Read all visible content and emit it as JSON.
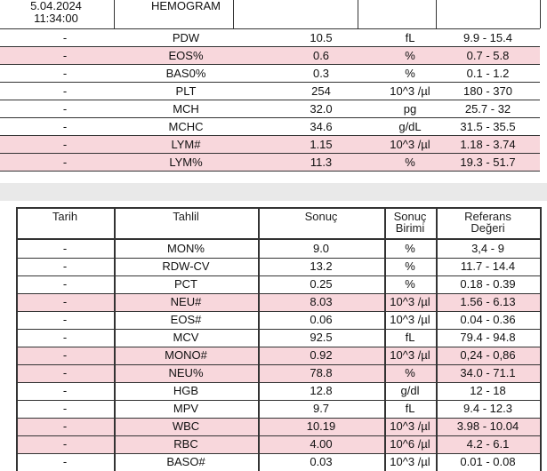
{
  "top_table": {
    "header": {
      "date": [
        "5.04.2024",
        "11:34:00"
      ],
      "panel": "HEMOGRAM"
    },
    "rows": [
      {
        "cells": [
          "-",
          "PDW",
          "10.5",
          "fL",
          "9.9 - 15.4"
        ],
        "highlight": false
      },
      {
        "cells": [
          "-",
          "EOS%",
          "0.6",
          "%",
          "0.7 - 5.8"
        ],
        "highlight": true
      },
      {
        "cells": [
          "-",
          "BAS0%",
          "0.3",
          "%",
          "0.1 - 1.2"
        ],
        "highlight": false
      },
      {
        "cells": [
          "-",
          "PLT",
          "254",
          "10^3 /µl",
          "180 - 370"
        ],
        "highlight": false
      },
      {
        "cells": [
          "-",
          "MCH",
          "32.0",
          "pg",
          "25.7 - 32"
        ],
        "highlight": false
      },
      {
        "cells": [
          "-",
          "MCHC",
          "34.6",
          "g/dL",
          "31.5 - 35.5"
        ],
        "highlight": false
      },
      {
        "cells": [
          "-",
          "LYM#",
          "1.15",
          "10^3 /µl",
          "1.18 - 3.74"
        ],
        "highlight": true
      },
      {
        "cells": [
          "-",
          "LYM%",
          "11.3",
          "%",
          "19.3 - 51.7"
        ],
        "highlight": true
      }
    ]
  },
  "bottom_table": {
    "header": [
      [
        "Tarih"
      ],
      [
        "Tahlil"
      ],
      [
        "Sonuç"
      ],
      [
        "Sonuç",
        "Birimi"
      ],
      [
        "Referans",
        "Değeri"
      ]
    ],
    "rows": [
      {
        "cells": [
          "-",
          "MON%",
          "9.0",
          "%",
          "3,4 - 9"
        ],
        "highlight": false
      },
      {
        "cells": [
          "-",
          "RDW-CV",
          "13.2",
          "%",
          "11.7 - 14.4"
        ],
        "highlight": false
      },
      {
        "cells": [
          "-",
          "PCT",
          "0.25",
          "%",
          "0.18 - 0.39"
        ],
        "highlight": false
      },
      {
        "cells": [
          "-",
          "NEU#",
          "8.03",
          "10^3 /µl",
          "1.56 - 6.13"
        ],
        "highlight": true
      },
      {
        "cells": [
          "-",
          "EOS#",
          "0.06",
          "10^3 /µl",
          "0.04 - 0.36"
        ],
        "highlight": false
      },
      {
        "cells": [
          "-",
          "MCV",
          "92.5",
          "fL",
          "79.4 - 94.8"
        ],
        "highlight": false
      },
      {
        "cells": [
          "-",
          "MONO#",
          "0.92",
          "10^3 /µl",
          "0,24 - 0,86"
        ],
        "highlight": true
      },
      {
        "cells": [
          "-",
          "NEU%",
          "78.8",
          "%",
          "34.0 - 71.1"
        ],
        "highlight": true
      },
      {
        "cells": [
          "-",
          "HGB",
          "12.8",
          "g/dl",
          "12 - 18"
        ],
        "highlight": false
      },
      {
        "cells": [
          "-",
          "MPV",
          "9.7",
          "fL",
          "9.4 - 12.3"
        ],
        "highlight": false
      },
      {
        "cells": [
          "-",
          "WBC",
          "10.19",
          "10^3 /µl",
          "3.98 - 10.04"
        ],
        "highlight": true
      },
      {
        "cells": [
          "-",
          "RBC",
          "4.00",
          "10^6 /µl",
          "4.2 - 6.1"
        ],
        "highlight": true
      },
      {
        "cells": [
          "-",
          "BASO#",
          "0.03",
          "10^3 /µl",
          "0.01 - 0.08"
        ],
        "highlight": false
      }
    ]
  },
  "highlight_color": "#f8d7dc"
}
